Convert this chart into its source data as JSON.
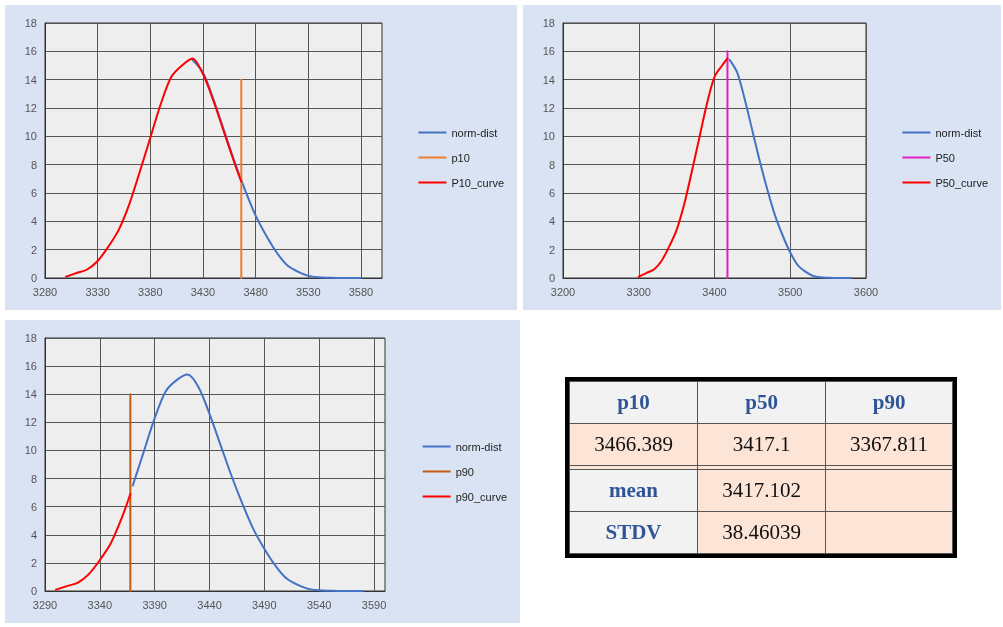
{
  "chart_data": [
    {
      "type": "line",
      "xlim": [
        3280,
        3600
      ],
      "xticks": [
        3280,
        3330,
        3380,
        3430,
        3480,
        3530,
        3580
      ],
      "ylim": [
        0,
        18
      ],
      "yticks": [
        0,
        2,
        4,
        6,
        8,
        10,
        12,
        14,
        16,
        18
      ],
      "grid": true,
      "legend": "right",
      "series": [
        {
          "name": "norm-dist",
          "color": "#4472c4",
          "x": [
            3420,
            3430,
            3440,
            3450,
            3460,
            3470,
            3480,
            3490,
            3500,
            3510,
            3520,
            3530,
            3540,
            3550,
            3560,
            3570,
            3580
          ],
          "values": [
            15.4,
            14.5,
            12.6,
            10.4,
            8.2,
            6.2,
            4.4,
            3.0,
            1.8,
            0.9,
            0.45,
            0.15,
            0.05,
            0.02,
            0,
            0,
            0
          ]
        },
        {
          "name": "p10",
          "color": "#ed7d31",
          "x": [
            3466.389,
            3466.389
          ],
          "values": [
            0,
            14
          ]
        },
        {
          "name": "P10_curve",
          "color": "#ff0000",
          "x": [
            3300,
            3310,
            3320,
            3330,
            3340,
            3350,
            3360,
            3370,
            3380,
            3390,
            3400,
            3410,
            3420,
            3430,
            3440,
            3450,
            3460,
            3466.389
          ],
          "values": [
            0.1,
            0.35,
            0.6,
            1.2,
            2.2,
            3.4,
            5.2,
            7.5,
            9.9,
            12.3,
            14.2,
            15.0,
            15.5,
            14.4,
            12.5,
            10.3,
            8.1,
            6.8
          ]
        }
      ]
    },
    {
      "type": "line",
      "xlim": [
        3200,
        3600
      ],
      "xticks": [
        3200,
        3300,
        3400,
        3500,
        3600
      ],
      "ylim": [
        0,
        18
      ],
      "yticks": [
        0,
        2,
        4,
        6,
        8,
        10,
        12,
        14,
        16,
        18
      ],
      "grid": true,
      "legend": "right",
      "series": [
        {
          "name": "norm-dist",
          "color": "#4472c4",
          "x": [
            3420,
            3430,
            3440,
            3450,
            3460,
            3470,
            3480,
            3490,
            3500,
            3510,
            3520,
            3530,
            3540,
            3550,
            3560,
            3570,
            3580
          ],
          "values": [
            15.4,
            14.5,
            12.6,
            10.4,
            8.2,
            6.2,
            4.4,
            3.0,
            1.8,
            0.9,
            0.45,
            0.15,
            0.05,
            0.02,
            0,
            0,
            0
          ]
        },
        {
          "name": "P50",
          "color": "#e020c0",
          "x": [
            3417.1,
            3417.1
          ],
          "values": [
            0,
            16
          ]
        },
        {
          "name": "P50_curve",
          "color": "#ff0000",
          "x": [
            3300,
            3310,
            3320,
            3330,
            3340,
            3350,
            3360,
            3370,
            3380,
            3390,
            3400,
            3410,
            3417.1
          ],
          "values": [
            0.1,
            0.35,
            0.6,
            1.2,
            2.2,
            3.4,
            5.2,
            7.5,
            9.9,
            12.3,
            14.2,
            15.0,
            15.5
          ]
        }
      ]
    },
    {
      "type": "line",
      "xlim": [
        3290,
        3600
      ],
      "xticks": [
        3290,
        3340,
        3390,
        3440,
        3490,
        3540,
        3590
      ],
      "ylim": [
        0,
        18
      ],
      "yticks": [
        0,
        2,
        4,
        6,
        8,
        10,
        12,
        14,
        16,
        18
      ],
      "grid": true,
      "legend": "right",
      "series": [
        {
          "name": "norm-dist",
          "color": "#4472c4",
          "x": [
            3370,
            3380,
            3390,
            3400,
            3410,
            3420,
            3430,
            3440,
            3450,
            3460,
            3470,
            3480,
            3490,
            3500,
            3510,
            3520,
            3530,
            3540,
            3550,
            3560,
            3570,
            3580
          ],
          "values": [
            7.5,
            9.9,
            12.3,
            14.2,
            15.0,
            15.4,
            14.5,
            12.6,
            10.4,
            8.2,
            6.2,
            4.4,
            3.0,
            1.8,
            0.9,
            0.45,
            0.15,
            0.05,
            0.02,
            0,
            0,
            0
          ]
        },
        {
          "name": "p90",
          "color": "#c55a11",
          "x": [
            3367.811,
            3367.811
          ],
          "values": [
            0,
            14
          ]
        },
        {
          "name": "p90_curve",
          "color": "#ff0000",
          "x": [
            3300,
            3310,
            3320,
            3330,
            3340,
            3350,
            3360,
            3367.811
          ],
          "values": [
            0.1,
            0.35,
            0.6,
            1.2,
            2.2,
            3.4,
            5.2,
            6.9
          ]
        }
      ]
    },
    {
      "type": "other",
      "categories": [
        "p10",
        "p50",
        "p90"
      ],
      "cell_labels": [
        [
          "3466.389",
          "3417.1",
          "3367.811"
        ],
        [
          null,
          null,
          null
        ],
        [
          "mean",
          "3417.102",
          null
        ],
        [
          "STDV",
          "38.46039",
          null
        ]
      ]
    }
  ]
}
